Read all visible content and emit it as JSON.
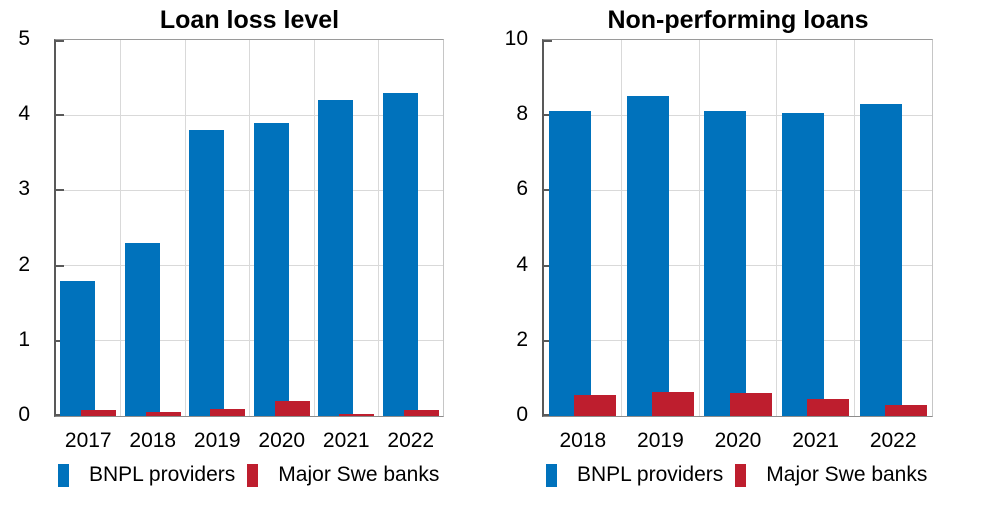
{
  "colors": {
    "bnpl_blue": "#0072BC",
    "banks_red": "#BE1E2E",
    "gridline": "#D9D9D9",
    "axis_dark": "#595959",
    "text": "#000000"
  },
  "chart_data": [
    {
      "type": "bar",
      "title": "Loan loss level",
      "categories": [
        "2017",
        "2018",
        "2019",
        "2020",
        "2021",
        "2022"
      ],
      "series": [
        {
          "name": "BNPL providers",
          "color": "#0072BC",
          "values": [
            1.8,
            2.3,
            3.8,
            3.9,
            4.2,
            4.3
          ]
        },
        {
          "name": "Major Swe banks",
          "color": "#BE1E2E",
          "values": [
            0.08,
            0.05,
            0.09,
            0.2,
            0.03,
            0.08
          ]
        }
      ],
      "xlabel": "",
      "ylabel": "",
      "ylim": [
        0,
        5
      ],
      "yticks": [
        0,
        1,
        2,
        3,
        4,
        5
      ],
      "grid": true,
      "legend_position": "bottom"
    },
    {
      "type": "bar",
      "title": "Non-performing loans",
      "categories": [
        "2018",
        "2019",
        "2020",
        "2021",
        "2022"
      ],
      "series": [
        {
          "name": "BNPL providers",
          "color": "#0072BC",
          "values": [
            8.1,
            8.5,
            8.1,
            8.05,
            8.3
          ]
        },
        {
          "name": "Major Swe banks",
          "color": "#BE1E2E",
          "values": [
            0.55,
            0.65,
            0.6,
            0.45,
            0.3
          ]
        }
      ],
      "xlabel": "",
      "ylabel": "",
      "ylim": [
        0,
        10
      ],
      "yticks": [
        0,
        2,
        4,
        6,
        8,
        10
      ],
      "grid": true,
      "legend_position": "bottom"
    }
  ]
}
